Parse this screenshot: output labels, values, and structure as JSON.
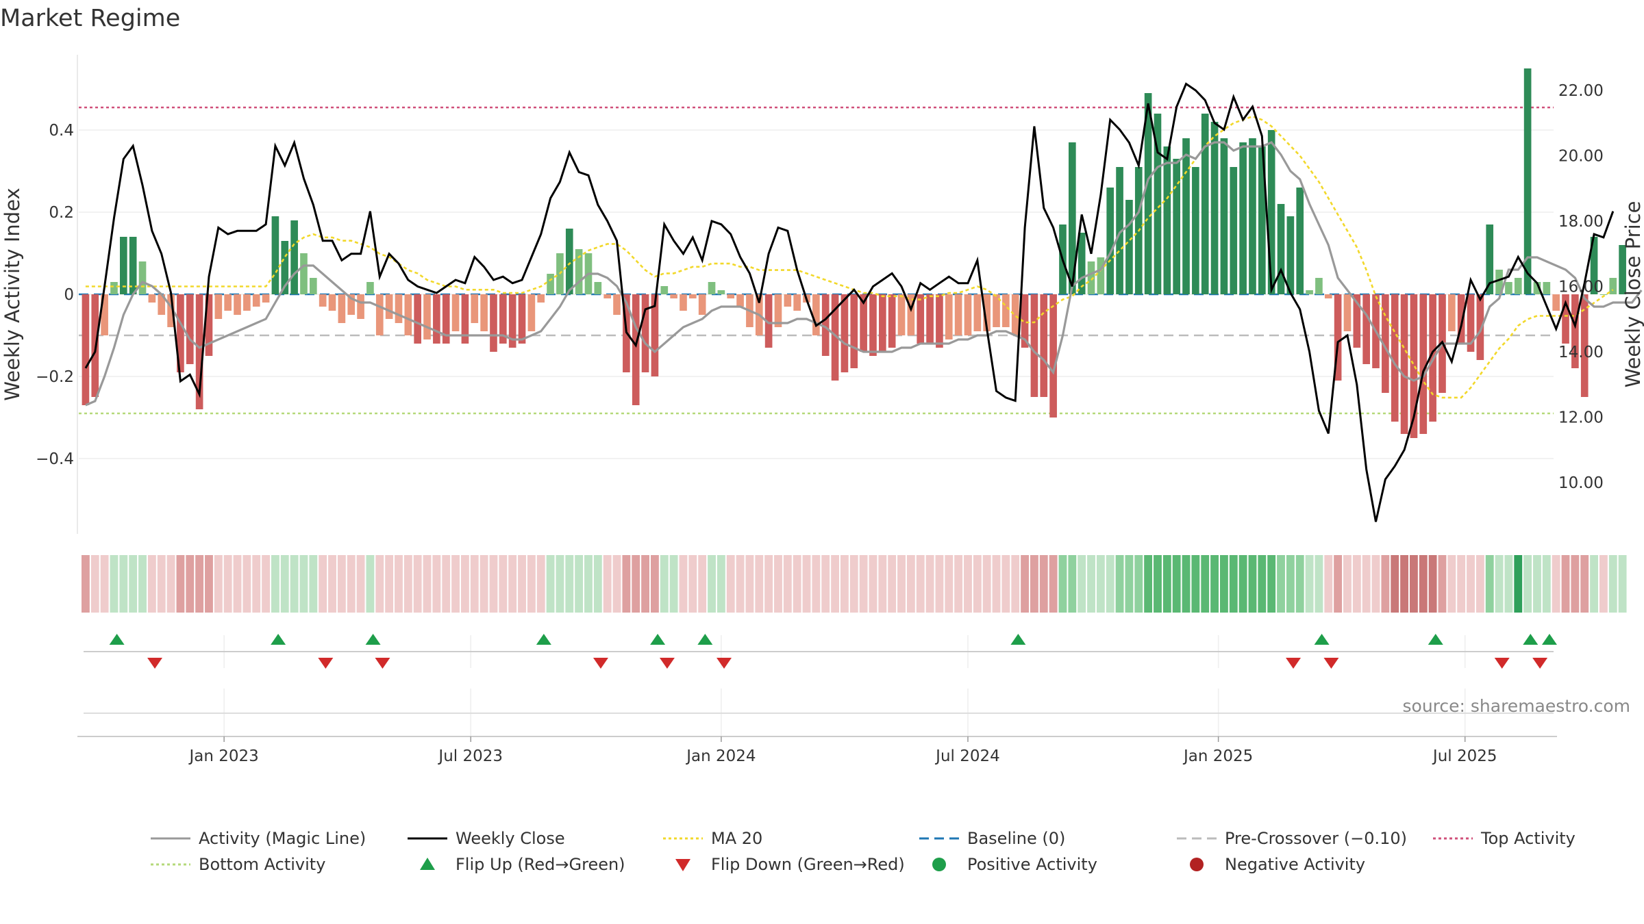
{
  "chart_data": {
    "type": "bar",
    "title": "Market Regime",
    "ylabel": "Weekly Activity Index",
    "y2label": "Weekly Close Price",
    "source": "source: sharemaestro.com",
    "ylim": [
      -0.58,
      0.58
    ],
    "y2lim": [
      8.3,
      23.4
    ],
    "yticks": [
      -0.4,
      -0.2,
      0,
      0.2,
      0.4
    ],
    "yticklabels": [
      "−0.4",
      "−0.2",
      "0",
      "0.2",
      "0.4"
    ],
    "y2ticks": [
      10,
      12,
      14,
      16,
      18,
      20,
      22
    ],
    "y2ticklabels": [
      "10.00",
      "12.00",
      "14.00",
      "16.00",
      "18.00",
      "20.00",
      "22.00"
    ],
    "xticks": [
      "Jan 2023",
      "Jul 2023",
      "Jan 2024",
      "Jul 2024",
      "Jan 2025",
      "Jul 2025"
    ],
    "xtick_weeks": [
      14.6,
      40.6,
      67.0,
      93.0,
      119.4,
      145.4
    ],
    "reference_lines": {
      "top_activity": 0.455,
      "bottom_activity": -0.29,
      "pre_crossover": -0.1,
      "baseline": 0
    },
    "colors": {
      "pos_strong": "#2e8b57",
      "pos_light": "#7fbf7f",
      "neg_strong": "#cd5c5c",
      "neg_light": "#e9967a",
      "close": "#000000",
      "magic": "#999999",
      "ma20": "#f2d82a",
      "baseline": "#1f77b4",
      "pre": "#bbbbbb",
      "top": "#d0507a",
      "bottom": "#b5d97a",
      "flip_up": "#1e9e4a",
      "flip_down": "#d12a2a",
      "pos_dot": "#1e9e4a",
      "neg_dot": "#b22222"
    },
    "activity": [
      -0.27,
      -0.25,
      -0.1,
      0.03,
      0.14,
      0.14,
      0.08,
      -0.02,
      -0.05,
      -0.08,
      -0.19,
      -0.17,
      -0.28,
      -0.15,
      -0.06,
      -0.04,
      -0.05,
      -0.04,
      -0.03,
      -0.02,
      0.19,
      0.13,
      0.18,
      0.1,
      0.04,
      -0.03,
      -0.04,
      -0.07,
      -0.05,
      -0.06,
      0.03,
      -0.1,
      -0.06,
      -0.07,
      -0.1,
      -0.12,
      -0.11,
      -0.12,
      -0.12,
      -0.09,
      -0.12,
      -0.07,
      -0.09,
      -0.14,
      -0.12,
      -0.13,
      -0.12,
      -0.09,
      -0.02,
      0.05,
      0.1,
      0.16,
      0.11,
      0.1,
      0.03,
      -0.01,
      -0.05,
      -0.19,
      -0.27,
      -0.19,
      -0.2,
      0.02,
      -0.01,
      -0.04,
      -0.01,
      -0.05,
      0.03,
      0.01,
      -0.01,
      -0.03,
      -0.08,
      -0.1,
      -0.13,
      -0.08,
      -0.03,
      -0.04,
      -0.02,
      -0.1,
      -0.15,
      -0.21,
      -0.19,
      -0.18,
      -0.14,
      -0.15,
      -0.14,
      -0.13,
      -0.1,
      -0.1,
      -0.12,
      -0.12,
      -0.13,
      -0.11,
      -0.1,
      -0.1,
      -0.09,
      -0.09,
      -0.08,
      -0.08,
      -0.1,
      -0.13,
      -0.25,
      -0.25,
      -0.3,
      0.17,
      0.37,
      0.15,
      0.08,
      0.09,
      0.26,
      0.31,
      0.23,
      0.31,
      0.49,
      0.44,
      0.36,
      0.33,
      0.38,
      0.31,
      0.44,
      0.42,
      0.38,
      0.31,
      0.37,
      0.38,
      0.36,
      0.4,
      0.22,
      0.19,
      0.26,
      0.01,
      0.04,
      -0.01,
      -0.21,
      -0.09,
      -0.13,
      -0.17,
      -0.18,
      -0.24,
      -0.31,
      -0.34,
      -0.35,
      -0.34,
      -0.31,
      -0.24,
      -0.09,
      -0.12,
      -0.14,
      -0.16,
      0.17,
      0.06,
      0.03,
      0.04,
      0.55,
      0.03,
      0.03,
      -0.04,
      -0.12,
      -0.18,
      -0.25,
      0.14,
      0.0,
      0.04,
      0.12
    ],
    "close": [
      13.5,
      14.0,
      16.0,
      18.1,
      19.9,
      20.3,
      19.1,
      17.7,
      17.0,
      15.8,
      13.1,
      13.3,
      12.7,
      16.3,
      17.8,
      17.6,
      17.7,
      17.7,
      17.7,
      17.9,
      20.3,
      19.7,
      20.4,
      19.3,
      18.5,
      17.4,
      17.4,
      16.8,
      17.0,
      17.0,
      18.3,
      16.3,
      17.0,
      16.7,
      16.2,
      16.0,
      15.9,
      15.8,
      16.0,
      16.2,
      16.1,
      16.9,
      16.6,
      16.2,
      16.3,
      16.1,
      16.2,
      16.9,
      17.6,
      18.7,
      19.2,
      20.1,
      19.5,
      19.4,
      18.5,
      18.0,
      17.4,
      14.6,
      14.2,
      15.3,
      15.4,
      17.9,
      17.4,
      17.0,
      17.5,
      16.8,
      18.0,
      17.9,
      17.6,
      16.9,
      16.4,
      15.5,
      17.0,
      17.8,
      17.7,
      16.5,
      15.6,
      14.8,
      15.0,
      15.3,
      15.6,
      15.9,
      15.5,
      16.0,
      16.2,
      16.4,
      16.0,
      15.3,
      16.1,
      15.9,
      16.1,
      16.3,
      16.1,
      16.1,
      16.8,
      14.7,
      12.8,
      12.6,
      12.5,
      17.8,
      20.9,
      18.4,
      17.8,
      16.8,
      16.0,
      18.2,
      17.0,
      18.8,
      21.1,
      20.8,
      20.4,
      19.7,
      21.6,
      20.1,
      19.9,
      21.5,
      22.2,
      22.0,
      21.7,
      21.0,
      20.8,
      21.8,
      21.1,
      21.5,
      20.6,
      15.9,
      16.5,
      15.8,
      15.3,
      14.0,
      12.2,
      11.5,
      14.3,
      14.5,
      13.0,
      10.4,
      8.8,
      10.1,
      10.5,
      11.0,
      12.0,
      13.4,
      14.0,
      14.3,
      13.7,
      14.8,
      16.2,
      15.6,
      16.1,
      16.2,
      16.3,
      16.9,
      16.4,
      16.1,
      15.4,
      14.7,
      15.5,
      14.8,
      16.1,
      17.6,
      17.5,
      18.3
    ],
    "magic": [
      -0.27,
      -0.26,
      -0.2,
      -0.13,
      -0.05,
      0.0,
      0.03,
      0.02,
      0.0,
      -0.03,
      -0.07,
      -0.11,
      -0.13,
      -0.12,
      -0.11,
      -0.1,
      -0.09,
      -0.08,
      -0.07,
      -0.06,
      -0.02,
      0.02,
      0.05,
      0.07,
      0.07,
      0.05,
      0.03,
      0.01,
      -0.01,
      -0.02,
      -0.02,
      -0.03,
      -0.04,
      -0.05,
      -0.06,
      -0.07,
      -0.08,
      -0.09,
      -0.1,
      -0.1,
      -0.1,
      -0.1,
      -0.1,
      -0.1,
      -0.1,
      -0.11,
      -0.11,
      -0.1,
      -0.09,
      -0.06,
      -0.03,
      0.01,
      0.03,
      0.05,
      0.05,
      0.04,
      0.02,
      -0.02,
      -0.08,
      -0.12,
      -0.14,
      -0.12,
      -0.1,
      -0.08,
      -0.07,
      -0.06,
      -0.04,
      -0.03,
      -0.03,
      -0.03,
      -0.04,
      -0.05,
      -0.07,
      -0.07,
      -0.07,
      -0.06,
      -0.06,
      -0.07,
      -0.08,
      -0.1,
      -0.12,
      -0.13,
      -0.14,
      -0.14,
      -0.14,
      -0.14,
      -0.13,
      -0.13,
      -0.12,
      -0.12,
      -0.12,
      -0.12,
      -0.11,
      -0.11,
      -0.1,
      -0.1,
      -0.09,
      -0.09,
      -0.1,
      -0.11,
      -0.14,
      -0.16,
      -0.19,
      -0.1,
      0.02,
      0.04,
      0.05,
      0.06,
      0.1,
      0.15,
      0.17,
      0.2,
      0.28,
      0.31,
      0.32,
      0.32,
      0.34,
      0.33,
      0.36,
      0.37,
      0.37,
      0.35,
      0.36,
      0.36,
      0.36,
      0.37,
      0.34,
      0.3,
      0.28,
      0.22,
      0.17,
      0.12,
      0.04,
      0.01,
      -0.02,
      -0.05,
      -0.09,
      -0.13,
      -0.17,
      -0.2,
      -0.21,
      -0.2,
      -0.16,
      -0.12,
      -0.12,
      -0.12,
      -0.12,
      -0.09,
      -0.03,
      -0.01,
      0.06,
      0.06,
      0.09,
      0.09,
      0.08,
      0.07,
      0.06,
      0.04,
      -0.01,
      -0.03,
      -0.03,
      -0.02,
      -0.02,
      -0.02,
      0.01
    ],
    "ma20": [
      16.0,
      16.0,
      16.0,
      16.0,
      16.0,
      16.0,
      16.0,
      16.0,
      16.0,
      16.0,
      16.0,
      16.0,
      16.0,
      16.0,
      16.0,
      16.0,
      16.0,
      16.0,
      16.0,
      16.0,
      16.4,
      16.9,
      17.3,
      17.5,
      17.6,
      17.5,
      17.5,
      17.4,
      17.4,
      17.3,
      17.2,
      17.0,
      16.9,
      16.7,
      16.5,
      16.4,
      16.2,
      16.1,
      16.0,
      16.0,
      15.9,
      15.9,
      15.9,
      15.9,
      15.8,
      15.8,
      15.8,
      15.9,
      16.0,
      16.2,
      16.4,
      16.7,
      16.9,
      17.1,
      17.2,
      17.3,
      17.3,
      17.1,
      16.8,
      16.5,
      16.3,
      16.4,
      16.4,
      16.5,
      16.6,
      16.6,
      16.7,
      16.7,
      16.7,
      16.6,
      16.6,
      16.5,
      16.5,
      16.5,
      16.5,
      16.5,
      16.4,
      16.3,
      16.2,
      16.1,
      16.0,
      15.9,
      15.8,
      15.8,
      15.7,
      15.7,
      15.7,
      15.6,
      15.6,
      15.7,
      15.7,
      15.8,
      15.8,
      15.9,
      16.0,
      15.9,
      15.7,
      15.4,
      15.1,
      14.9,
      14.9,
      15.2,
      15.4,
      15.6,
      15.7,
      16.0,
      16.2,
      16.5,
      16.8,
      17.1,
      17.4,
      17.7,
      18.1,
      18.4,
      18.7,
      19.1,
      19.5,
      19.9,
      20.3,
      20.6,
      20.8,
      21.0,
      21.1,
      21.2,
      21.1,
      20.9,
      20.6,
      20.3,
      20.0,
      19.6,
      19.2,
      18.7,
      18.2,
      17.7,
      17.2,
      16.5,
      15.7,
      15.1,
      14.6,
      14.1,
      13.6,
      13.1,
      12.7,
      12.6,
      12.6,
      12.6,
      12.9,
      13.3,
      13.7,
      14.1,
      14.4,
      14.8,
      15.0,
      15.1,
      15.1,
      15.1,
      15.1,
      15.1,
      15.3,
      15.5,
      15.7,
      15.9
    ],
    "strip": [
      -2,
      -1,
      -1,
      1,
      1,
      1,
      1,
      -1,
      -1,
      -1,
      -2,
      -2,
      -2,
      -2,
      -1,
      -1,
      -1,
      -1,
      -1,
      -1,
      1,
      1,
      1,
      1,
      1,
      -1,
      -1,
      -1,
      -1,
      -1,
      1,
      -1,
      -1,
      -1,
      -1,
      -1,
      -1,
      -1,
      -1,
      -1,
      -1,
      -1,
      -1,
      -1,
      -1,
      -1,
      -1,
      -1,
      -1,
      1,
      1,
      1,
      1,
      1,
      1,
      -1,
      -1,
      -2,
      -2,
      -2,
      -2,
      1,
      1,
      -1,
      -1,
      -1,
      1,
      1,
      -1,
      -1,
      -1,
      -1,
      -1,
      -1,
      -1,
      -1,
      -1,
      -1,
      -1,
      -1,
      -1,
      -1,
      -1,
      -1,
      -1,
      -1,
      -1,
      -1,
      -1,
      -1,
      -1,
      -1,
      -1,
      -1,
      -1,
      -1,
      -1,
      -1,
      -1,
      -2,
      -2,
      -2,
      -2,
      2,
      2,
      1,
      1,
      1,
      1,
      2,
      2,
      2,
      3,
      3,
      3,
      3,
      3,
      3,
      3,
      3,
      3,
      3,
      3,
      3,
      3,
      3,
      2,
      2,
      2,
      1,
      1,
      -1,
      -2,
      -1,
      -1,
      -1,
      -1,
      -2,
      -3,
      -3,
      -3,
      -3,
      -3,
      -2,
      -1,
      -1,
      -1,
      -1,
      2,
      1,
      1,
      4,
      1,
      1,
      1,
      -1,
      -2,
      -2,
      -2,
      1,
      -1,
      1,
      1
    ],
    "flip_up_weeks": [
      3.3,
      20.3,
      30.3,
      48.3,
      60.3,
      65.3,
      98.3,
      130.3,
      142.3,
      152.3,
      154.3
    ],
    "flip_down_weeks": [
      7.3,
      25.3,
      31.3,
      54.3,
      61.3,
      67.3,
      127.3,
      131.3,
      149.3,
      153.3
    ],
    "legend": [
      {
        "label": "Activity (Magic Line)",
        "kind": "line-solid",
        "color": "#999999"
      },
      {
        "label": "Weekly Close",
        "kind": "line-solid",
        "color": "#000000"
      },
      {
        "label": "MA 20",
        "kind": "line-dot",
        "color": "#f2d82a"
      },
      {
        "label": "Baseline (0)",
        "kind": "line-dash",
        "color": "#1f77b4"
      },
      {
        "label": "Pre-Crossover (−0.10)",
        "kind": "line-dash",
        "color": "#bbbbbb"
      },
      {
        "label": "Top Activity",
        "kind": "line-dot",
        "color": "#d0507a"
      },
      {
        "label": "Bottom Activity",
        "kind": "line-dot",
        "color": "#b5d97a"
      },
      {
        "label": "Flip Up (Red→Green)",
        "kind": "tri-up",
        "color": "#1e9e4a"
      },
      {
        "label": "Flip Down (Green→Red)",
        "kind": "tri-down",
        "color": "#d12a2a"
      },
      {
        "label": "Positive Activity",
        "kind": "dot",
        "color": "#1e9e4a"
      },
      {
        "label": "Negative Activity",
        "kind": "dot",
        "color": "#b22222"
      }
    ]
  }
}
